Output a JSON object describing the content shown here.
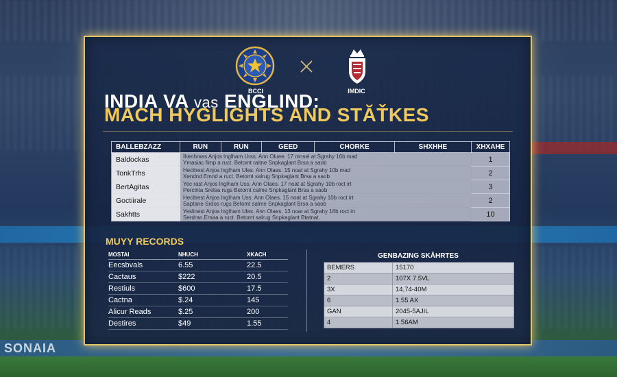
{
  "logos": {
    "left_label": "BCCI",
    "right_label": "IMDIC",
    "left_icon": "bcci-crest-icon",
    "right_icon": "england-crest-icon",
    "separator_icon": "cross-icon"
  },
  "title": {
    "line1_a": "INDIA VA ",
    "line1_b": "vas",
    "line1_c": " ENGLIND:",
    "line2": "MACH HYGLIGHTS AND STĂŤKES"
  },
  "batting": {
    "headers": [
      "BALLEBZAZZ",
      "RUN",
      "RUN",
      "GEED",
      "CHORKE",
      "SHXHHE",
      "XHXAHE"
    ],
    "rows": [
      {
        "name": "Baldockas",
        "notes": [
          "Ihenhrass Anjos lnglham Urss. Ann Oluee. 17 mnsel at Sgrahy 16b   mad",
          "Ymasiac fimp a ruct. Betomt raitne Snpkaglant Brsa a saob"
        ],
        "value": "1"
      },
      {
        "name": "TonkTrhs",
        "notes": [
          "Hecltrest Anjos lnglham Ules. Ann Olaes. 15 noat at Sgrahy 10b   mad",
          "Xendnd Emnd a ruct. Betomt salrug Snpkaglant Brsa a saob"
        ],
        "value": "2"
      },
      {
        "name": "BertAgitas",
        "notes": [
          "Yec rast Anjos lnglham Uss. Ann Olaes. 17 noat at Sgrahy 10b roct irt",
          "Percinta Srelsa rugs Betomt calme Snpkaglant Brsa a saob"
        ],
        "value": "3"
      },
      {
        "name": "Goctiirale",
        "notes": [
          "Hecltrest Anjos lnglham Uss. Ann Olaes. 15 noat at Sgrahy 10b roct irt",
          "Saptane Srdos rugs Betomt salme Snpkaglant Brsa a saob"
        ],
        "value": "2"
      },
      {
        "name": "Sakhtts",
        "notes": [
          "Yeslinest Anjos lnglham Ules. Ann Olaes. 13 noat at Sgrahy 16b roct irt",
          "Serdran.Emaa a ruct. Betomt salrug Snpkaglant Btatnat."
        ],
        "value": "10"
      }
    ]
  },
  "records": {
    "title": "MUYY RECORDS",
    "headers": [
      "MOSTAI",
      "NHUCH",
      "XKACH"
    ],
    "rows": [
      [
        "Eecsbvals",
        "6.55",
        "22.5"
      ],
      [
        "Cactaus",
        "$222",
        "20.5"
      ],
      [
        "Restiuls",
        "$600",
        "17.5"
      ],
      [
        "Cactna",
        "$.24",
        "145"
      ],
      [
        "Alicur Reads",
        "$.25",
        "200"
      ],
      [
        "Destires",
        "$49",
        "1.55"
      ]
    ]
  },
  "scores": {
    "title": "GENBAZING SKÅHRTES",
    "rows": [
      [
        "BEMERS",
        "15170"
      ],
      [
        "2",
        "107X 7.5VL"
      ],
      [
        "3X",
        "14,74-40M"
      ],
      [
        "6",
        "1.55 AX"
      ],
      [
        "GAN",
        "2045-5AJIL"
      ],
      [
        "4",
        "1.56AM"
      ]
    ]
  },
  "background": {
    "bottom_banner": "SONAIA"
  },
  "colors": {
    "gold": "#f0c95c",
    "frame": "#e3c564",
    "panel": "#1a2a4c"
  }
}
